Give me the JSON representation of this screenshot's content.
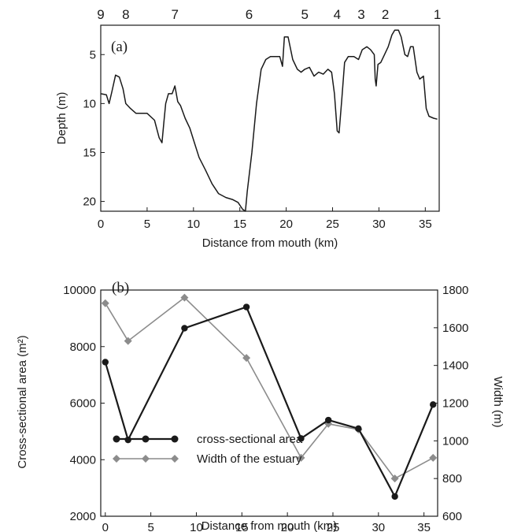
{
  "chart_data": [
    {
      "type": "line",
      "panel_label": "(a)",
      "xlabel": "Distance from mouth (km)",
      "ylabel": "Depth (m)",
      "xlim": [
        0,
        36.5
      ],
      "ylim": [
        21,
        2
      ],
      "y_inverted": true,
      "xticks": [
        0,
        5,
        10,
        15,
        20,
        25,
        30,
        35
      ],
      "yticks": [
        5,
        10,
        15,
        20
      ],
      "station_labels": [
        {
          "label": "9",
          "x": 0
        },
        {
          "label": "8",
          "x": 2.7
        },
        {
          "label": "7",
          "x": 8.0
        },
        {
          "label": "6",
          "x": 16.0
        },
        {
          "label": "5",
          "x": 22.0
        },
        {
          "label": "4",
          "x": 25.5
        },
        {
          "label": "3",
          "x": 28.1
        },
        {
          "label": "2",
          "x": 30.7
        },
        {
          "label": "1",
          "x": 36.3
        }
      ],
      "series": [
        {
          "color": "#1a1a1a",
          "x": [
            0,
            0.6,
            0.9,
            1.2,
            1.6,
            2.0,
            2.4,
            2.7,
            3.2,
            3.8,
            4.3,
            5.0,
            5.8,
            6.3,
            6.6,
            6.8,
            7.0,
            7.3,
            7.7,
            8.0,
            8.3,
            8.6,
            9.1,
            9.6,
            10.1,
            10.6,
            11.3,
            12.0,
            12.7,
            13.5,
            14.2,
            14.8,
            15.3,
            15.6,
            15.8,
            16.3,
            16.8,
            17.3,
            17.8,
            18.3,
            18.8,
            19.3,
            19.6,
            19.8,
            20.2,
            20.7,
            21.2,
            21.6,
            22.0,
            22.5,
            23.0,
            23.5,
            24.0,
            24.5,
            24.9,
            25.2,
            25.5,
            25.7,
            26.0,
            26.3,
            26.7,
            27.3,
            27.8,
            28.2,
            28.7,
            29.1,
            29.5,
            29.6,
            29.7,
            29.9,
            30.2,
            30.6,
            31.0,
            31.4,
            31.7,
            32.1,
            32.4,
            32.8,
            33.1,
            33.4,
            33.7,
            34.1,
            34.4,
            34.8,
            35.1,
            35.4,
            35.9,
            36.3
          ],
          "y": [
            9.0,
            9.1,
            10.0,
            8.8,
            7.1,
            7.3,
            8.5,
            10.0,
            10.5,
            11.0,
            11.0,
            11.0,
            11.7,
            13.5,
            14.0,
            12.0,
            10.0,
            9.0,
            9.0,
            8.2,
            9.8,
            10.2,
            11.5,
            12.5,
            14.0,
            15.5,
            16.8,
            18.2,
            19.2,
            19.6,
            19.8,
            20.1,
            20.8,
            21.0,
            19.0,
            15.0,
            10.0,
            6.5,
            5.5,
            5.2,
            5.2,
            5.2,
            6.2,
            3.2,
            3.2,
            5.5,
            6.5,
            6.8,
            6.5,
            6.3,
            7.2,
            6.8,
            7.0,
            6.5,
            6.8,
            9.0,
            12.8,
            13.0,
            9.5,
            5.8,
            5.2,
            5.2,
            5.5,
            4.5,
            4.2,
            4.5,
            5.0,
            7.5,
            8.2,
            6.0,
            5.8,
            5.0,
            4.2,
            3.0,
            2.5,
            2.5,
            3.2,
            5.0,
            5.2,
            4.2,
            4.2,
            6.8,
            7.5,
            7.2,
            10.5,
            11.3,
            11.5,
            11.6
          ]
        }
      ]
    },
    {
      "type": "line",
      "panel_label": "(b)",
      "xlabel": "Distance from mouth (km)",
      "ylabel": "Cross-sectional area (m²)",
      "y2label": "Width (m)",
      "xlim": [
        -0.5,
        36.5
      ],
      "ylim": [
        2000,
        10000
      ],
      "y2lim": [
        600,
        1800
      ],
      "xticks": [
        0,
        5,
        10,
        15,
        20,
        25,
        30,
        35
      ],
      "yticks": [
        2000,
        4000,
        6000,
        8000,
        10000
      ],
      "y2ticks": [
        600,
        800,
        1000,
        1200,
        1400,
        1600,
        1800
      ],
      "legend_position": "bottom-left",
      "series": [
        {
          "name": "cross-sectional area",
          "axis": "left",
          "color": "#1a1a1a",
          "marker": "circle",
          "x": [
            0,
            2.5,
            8.7,
            15.5,
            21.5,
            24.5,
            27.8,
            31.8,
            36.0
          ],
          "y": [
            7450,
            4700,
            8650,
            9400,
            4750,
            5400,
            5100,
            2700,
            5950
          ]
        },
        {
          "name": "Width of the estuary",
          "axis": "right",
          "color": "#8c8c8c",
          "marker": "diamond",
          "x": [
            0,
            2.5,
            8.7,
            15.5,
            21.5,
            24.5,
            27.8,
            31.8,
            36.0
          ],
          "y": [
            1730,
            1530,
            1760,
            1440,
            910,
            1090,
            1060,
            800,
            910
          ]
        }
      ]
    }
  ]
}
